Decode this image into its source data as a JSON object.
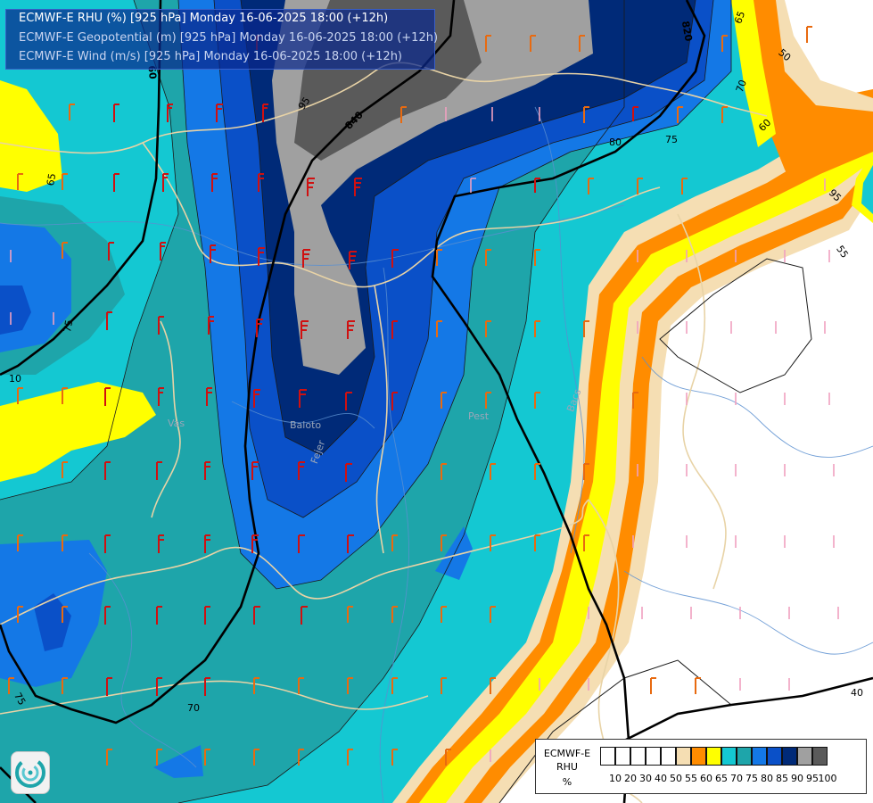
{
  "title": {
    "lines": [
      "ECMWF-E RHU (%) [925 hPa] Monday 16-06-2025 18:00 (+12h)",
      "ECMWF-E Geopotential (m) [925 hPa] Monday 16-06-2025 18:00 (+12h)",
      "ECMWF-E Wind (m/s) [925 hPa] Monday 16-06-2025 18:00 (+12h)"
    ]
  },
  "legend": {
    "label_lines": [
      "ECMWF-E",
      "RHU",
      "%"
    ],
    "colors": [
      "#ffffff",
      "#ffffff",
      "#ffffff",
      "#ffffff",
      "#ffffff",
      "#f5deb3",
      "#ff8c00",
      "#ffff00",
      "#14c8d2",
      "#1ea5aa",
      "#1478e6",
      "#0a50c8",
      "#002a78",
      "#a0a0a0",
      "#5a5a5a"
    ],
    "ticks": [
      "10",
      "20",
      "30",
      "40",
      "50",
      "55",
      "60",
      "65",
      "70",
      "75",
      "80",
      "85",
      "90",
      "95",
      "100"
    ]
  },
  "contours": {
    "geopotential": [
      "840",
      "820",
      "60"
    ],
    "rhu": [
      "95",
      "80",
      "75",
      "70",
      "65",
      "60",
      "55",
      "50",
      "40",
      "10",
      "75",
      "70",
      "75",
      "65",
      "95"
    ]
  },
  "map_labels": [
    "Vas",
    "Fejer",
    "Baloto",
    "Pest",
    "Bacs"
  ],
  "colors": {
    "rhu_90_100": "#5a5a5a",
    "rhu_95": "#a0a0a0",
    "rhu_90": "#002a78",
    "rhu_85": "#0a50c8",
    "rhu_80": "#1478e6",
    "rhu_75": "#1ea5aa",
    "rhu_70": "#14c8d2",
    "rhu_65": "#ffff00",
    "rhu_60": "#ff8c00",
    "rhu_55": "#f5deb3",
    "border": "#e8d3a6",
    "river": "#5a8fd0",
    "wind_strong": "#d01010",
    "wind_mid": "#e86a10",
    "wind_weak": "#f0a0c0"
  }
}
